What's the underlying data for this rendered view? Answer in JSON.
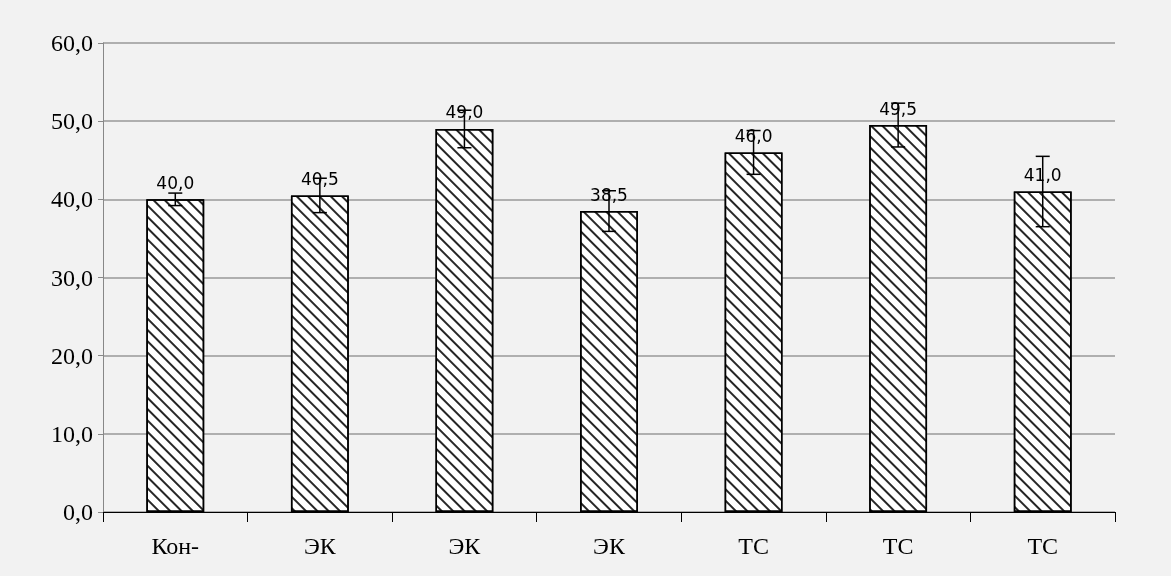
{
  "chart_data": {
    "type": "bar",
    "categories": [
      "Кон-",
      "ЭК",
      "ЭК",
      "ЭК",
      "ТС",
      "ТС",
      "ТС"
    ],
    "values": [
      40.0,
      40.5,
      49.0,
      38.5,
      46.0,
      49.5,
      41.0
    ],
    "value_labels": [
      "40,0",
      "40,5",
      "49,0",
      "38,5",
      "46,0",
      "49,5",
      "41,0"
    ],
    "errors": [
      0.8,
      2.2,
      2.4,
      2.6,
      2.8,
      2.8,
      4.5
    ],
    "color": "#ffffff",
    "ylim": [
      0,
      60
    ],
    "yticks": [
      {
        "value": 0,
        "label": "0,0"
      },
      {
        "value": 10,
        "label": "10,0"
      },
      {
        "value": 20,
        "label": "20,0"
      },
      {
        "value": 30,
        "label": "30,0"
      },
      {
        "value": 40,
        "label": "40,0"
      },
      {
        "value": 50,
        "label": "50,0"
      },
      {
        "value": 60,
        "label": "60,0"
      }
    ],
    "grid": "y"
  }
}
